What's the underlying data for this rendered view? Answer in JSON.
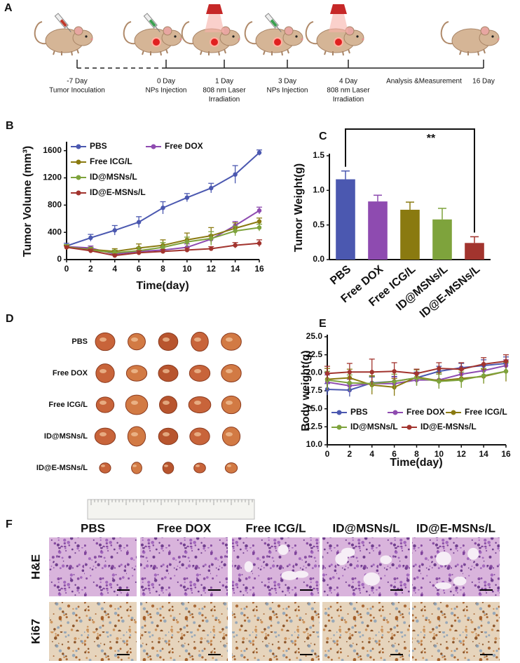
{
  "panel_a": {
    "label": "A",
    "steps": [
      {
        "day": "-7 Day",
        "event": [
          "Tumor Inoculation"
        ]
      },
      {
        "day": "0 Day",
        "event": [
          "NPs Injection"
        ]
      },
      {
        "day": "1 Day",
        "event": [
          "808 nm Laser",
          "Irradiation"
        ]
      },
      {
        "day": "3 Day",
        "event": [
          "NPs Injection"
        ]
      },
      {
        "day": "4 Day",
        "event": [
          "808 nm Laser",
          "Irradiation"
        ]
      }
    ],
    "phase": "Analysis &Measurement",
    "end_day": "16 Day"
  },
  "chart_data": [
    {
      "type": "line",
      "panel": "B",
      "x_label": "Time(day)",
      "y_label": "Tumor Volume  (mm³)",
      "x": [
        0,
        2,
        4,
        6,
        8,
        10,
        12,
        14,
        16
      ],
      "xlim": [
        0,
        16
      ],
      "xticks": [
        0,
        2,
        4,
        6,
        8,
        10,
        12,
        14,
        16
      ],
      "ylim": [
        0,
        1700
      ],
      "yticks": [
        0,
        400,
        800,
        1200,
        1600
      ],
      "series": [
        {
          "name": "PBS",
          "color": "#4b58b0",
          "values": [
            200,
            320,
            430,
            550,
            760,
            910,
            1050,
            1250,
            1570
          ],
          "errors": [
            40,
            50,
            70,
            80,
            90,
            60,
            70,
            130,
            40
          ]
        },
        {
          "name": "Free DOX",
          "color": "#8e4bb0",
          "values": [
            190,
            170,
            80,
            120,
            140,
            180,
            300,
            500,
            720
          ],
          "errors": [
            30,
            30,
            30,
            40,
            50,
            50,
            60,
            60,
            50
          ]
        },
        {
          "name": "Free ICG/L",
          "color": "#8a7a10",
          "values": [
            180,
            150,
            120,
            170,
            210,
            290,
            350,
            460,
            560
          ],
          "errors": [
            30,
            30,
            40,
            60,
            80,
            100,
            120,
            80,
            50
          ]
        },
        {
          "name": "ID@MSNs/L",
          "color": "#7ea33c",
          "values": [
            190,
            140,
            100,
            130,
            180,
            260,
            310,
            420,
            470
          ],
          "errors": [
            30,
            40,
            40,
            50,
            70,
            70,
            100,
            70,
            50
          ]
        },
        {
          "name": "ID@E-MSNs/L",
          "color": "#a2342e",
          "values": [
            180,
            130,
            60,
            100,
            120,
            140,
            160,
            210,
            240
          ],
          "errors": [
            20,
            20,
            20,
            30,
            30,
            30,
            30,
            40,
            50
          ]
        }
      ]
    },
    {
      "type": "bar",
      "panel": "C",
      "y_label": "Tumor  Weight(g)",
      "annotation": "**",
      "categories": [
        "PBS",
        "Free DOX",
        "Free ICG/L",
        "ID@MSNs/L",
        "ID@E-MSNs/L"
      ],
      "values": [
        1.16,
        0.84,
        0.72,
        0.58,
        0.24
      ],
      "errors": [
        0.12,
        0.09,
        0.11,
        0.16,
        0.09
      ],
      "colors": [
        "#4b58b0",
        "#8e4bb0",
        "#8a7a10",
        "#7ea33c",
        "#a2342e"
      ],
      "ylim": [
        0,
        1.5
      ],
      "yticks": [
        {
          "value": 0,
          "label": "0.0"
        },
        0.5,
        {
          "value": 1,
          "label": "1.0"
        },
        1.5
      ]
    },
    {
      "type": "line",
      "panel": "E",
      "x_label": "Time(day)",
      "y_label": "Body weight(g)",
      "x": [
        0,
        2,
        4,
        6,
        8,
        10,
        12,
        14,
        16
      ],
      "xlim": [
        0,
        16
      ],
      "xticks": [
        0,
        2,
        4,
        6,
        8,
        10,
        12,
        14,
        16
      ],
      "ylim": [
        10,
        25
      ],
      "yticks": [
        {
          "value": 10,
          "label": "10.0"
        },
        12.5,
        {
          "value": 15,
          "label": "15.0"
        },
        17.5,
        {
          "value": 20,
          "label": "20.0"
        },
        22.5,
        {
          "value": 25,
          "label": "25.0"
        }
      ],
      "series": [
        {
          "name": "PBS",
          "color": "#4b58b0",
          "values": [
            17.7,
            17.6,
            18.6,
            18.8,
            19.3,
            20.2,
            20.7,
            21.0,
            21.3
          ],
          "errors": [
            0.8,
            0.9,
            0.8,
            0.7,
            0.8,
            0.7,
            0.6,
            0.8,
            0.9
          ]
        },
        {
          "name": "Free DOX",
          "color": "#8e4bb0",
          "values": [
            18.7,
            18.2,
            18.5,
            18.5,
            19.0,
            19.0,
            19.8,
            20.3,
            21.0
          ],
          "errors": [
            1.0,
            0.9,
            1.0,
            0.9,
            0.8,
            0.8,
            0.9,
            0.9,
            0.8
          ]
        },
        {
          "name": "Free ICG/L",
          "color": "#8a7a10",
          "values": [
            19.1,
            19.3,
            18.3,
            18.0,
            19.4,
            18.9,
            19.2,
            19.5,
            20.2
          ],
          "errors": [
            1.5,
            1.2,
            1.3,
            1.2,
            1.1,
            1.1,
            1.2,
            1.0,
            1.4
          ]
        },
        {
          "name": "ID@MSNs/L",
          "color": "#7ea33c",
          "values": [
            19.0,
            18.6,
            18.5,
            18.8,
            19.3,
            18.8,
            19.0,
            19.6,
            20.2
          ],
          "errors": [
            1.2,
            1.1,
            1.0,
            1.0,
            1.1,
            1.0,
            1.1,
            1.0,
            1.2
          ]
        },
        {
          "name": "ID@E-MSNs/L",
          "color": "#a2342e",
          "values": [
            19.9,
            20.1,
            20.1,
            20.2,
            19.9,
            20.6,
            20.5,
            21.2,
            21.6
          ],
          "errors": [
            1.0,
            1.2,
            1.8,
            1.2,
            0.6,
            0.8,
            0.9,
            0.9,
            0.9
          ]
        }
      ]
    }
  ],
  "panel_d": {
    "label": "D",
    "rows": [
      "PBS",
      "Free DOX",
      "Free ICG/L",
      "ID@MSNs/L",
      "ID@E-MSNs/L"
    ]
  },
  "panel_f": {
    "label": "F",
    "columns": [
      "PBS",
      "Free DOX",
      "Free  ICG/L",
      "ID@MSNs/L",
      "ID@E-MSNs/L"
    ],
    "rows": [
      "H&E",
      "Ki67"
    ]
  }
}
